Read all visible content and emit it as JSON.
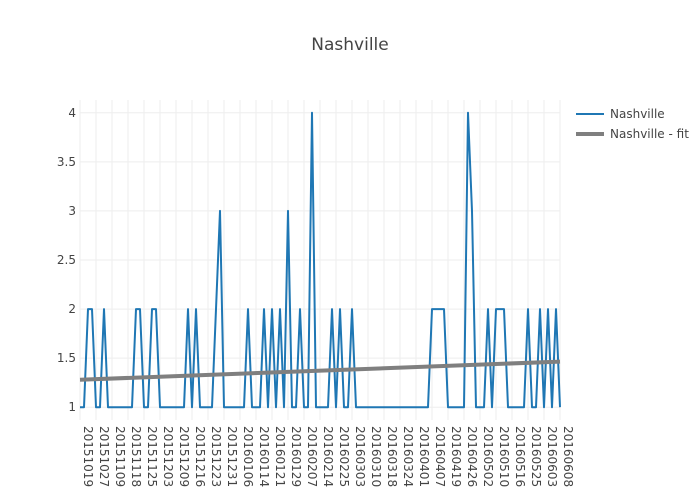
{
  "chart_data": {
    "type": "line",
    "title": "Nashville",
    "xlabel": "",
    "ylabel": "",
    "ylim": [
      0.87,
      4.13
    ],
    "x_tick_labels": [
      "20151019",
      "20151027",
      "20151109",
      "20151118",
      "20151125",
      "20151203",
      "20151209",
      "20151216",
      "20151223",
      "20151231",
      "20160106",
      "20160114",
      "20160121",
      "20160129",
      "20160207",
      "20160214",
      "20160225",
      "20160303",
      "20160310",
      "20160318",
      "20160324",
      "20160401",
      "20160407",
      "20160419",
      "20160426",
      "20160502",
      "20160510",
      "20160516",
      "20160525",
      "20160603",
      "20160608"
    ],
    "y_tick_labels": [
      "1",
      "1.5",
      "2",
      "2.5",
      "3",
      "3.5",
      "4"
    ],
    "y_ticks": [
      1,
      1.5,
      2,
      2.5,
      3,
      3.5,
      4
    ],
    "legend_position": "top-right",
    "series": [
      {
        "name": "Nashville",
        "color": "#1f77b4",
        "values": [
          1,
          1,
          2,
          2,
          1,
          1,
          2,
          1,
          1,
          1,
          1,
          1,
          1,
          1,
          2,
          2,
          1,
          1,
          2,
          2,
          1,
          1,
          1,
          1,
          1,
          1,
          1,
          2,
          1,
          2,
          1,
          1,
          1,
          1,
          2,
          3,
          1,
          1,
          1,
          1,
          1,
          1,
          2,
          1,
          1,
          1,
          2,
          1,
          2,
          1,
          2,
          1,
          3,
          1,
          1,
          2,
          1,
          1,
          4,
          1,
          1,
          1,
          1,
          2,
          1,
          2,
          1,
          1,
          2,
          1,
          1,
          1,
          1,
          1,
          1,
          1,
          1,
          1,
          1,
          1,
          1,
          1,
          1,
          1,
          1,
          1,
          1,
          1,
          2,
          2,
          2,
          2,
          1,
          1,
          1,
          1,
          1,
          4,
          3,
          1,
          1,
          1,
          2,
          1,
          2,
          2,
          2,
          1,
          1,
          1,
          1,
          1,
          2,
          1,
          1,
          2,
          1,
          2,
          1,
          2,
          1
        ]
      },
      {
        "name": "Nashville - fit",
        "color": "#7f7f7f",
        "values": [
          1.28,
          1.465
        ]
      }
    ]
  }
}
